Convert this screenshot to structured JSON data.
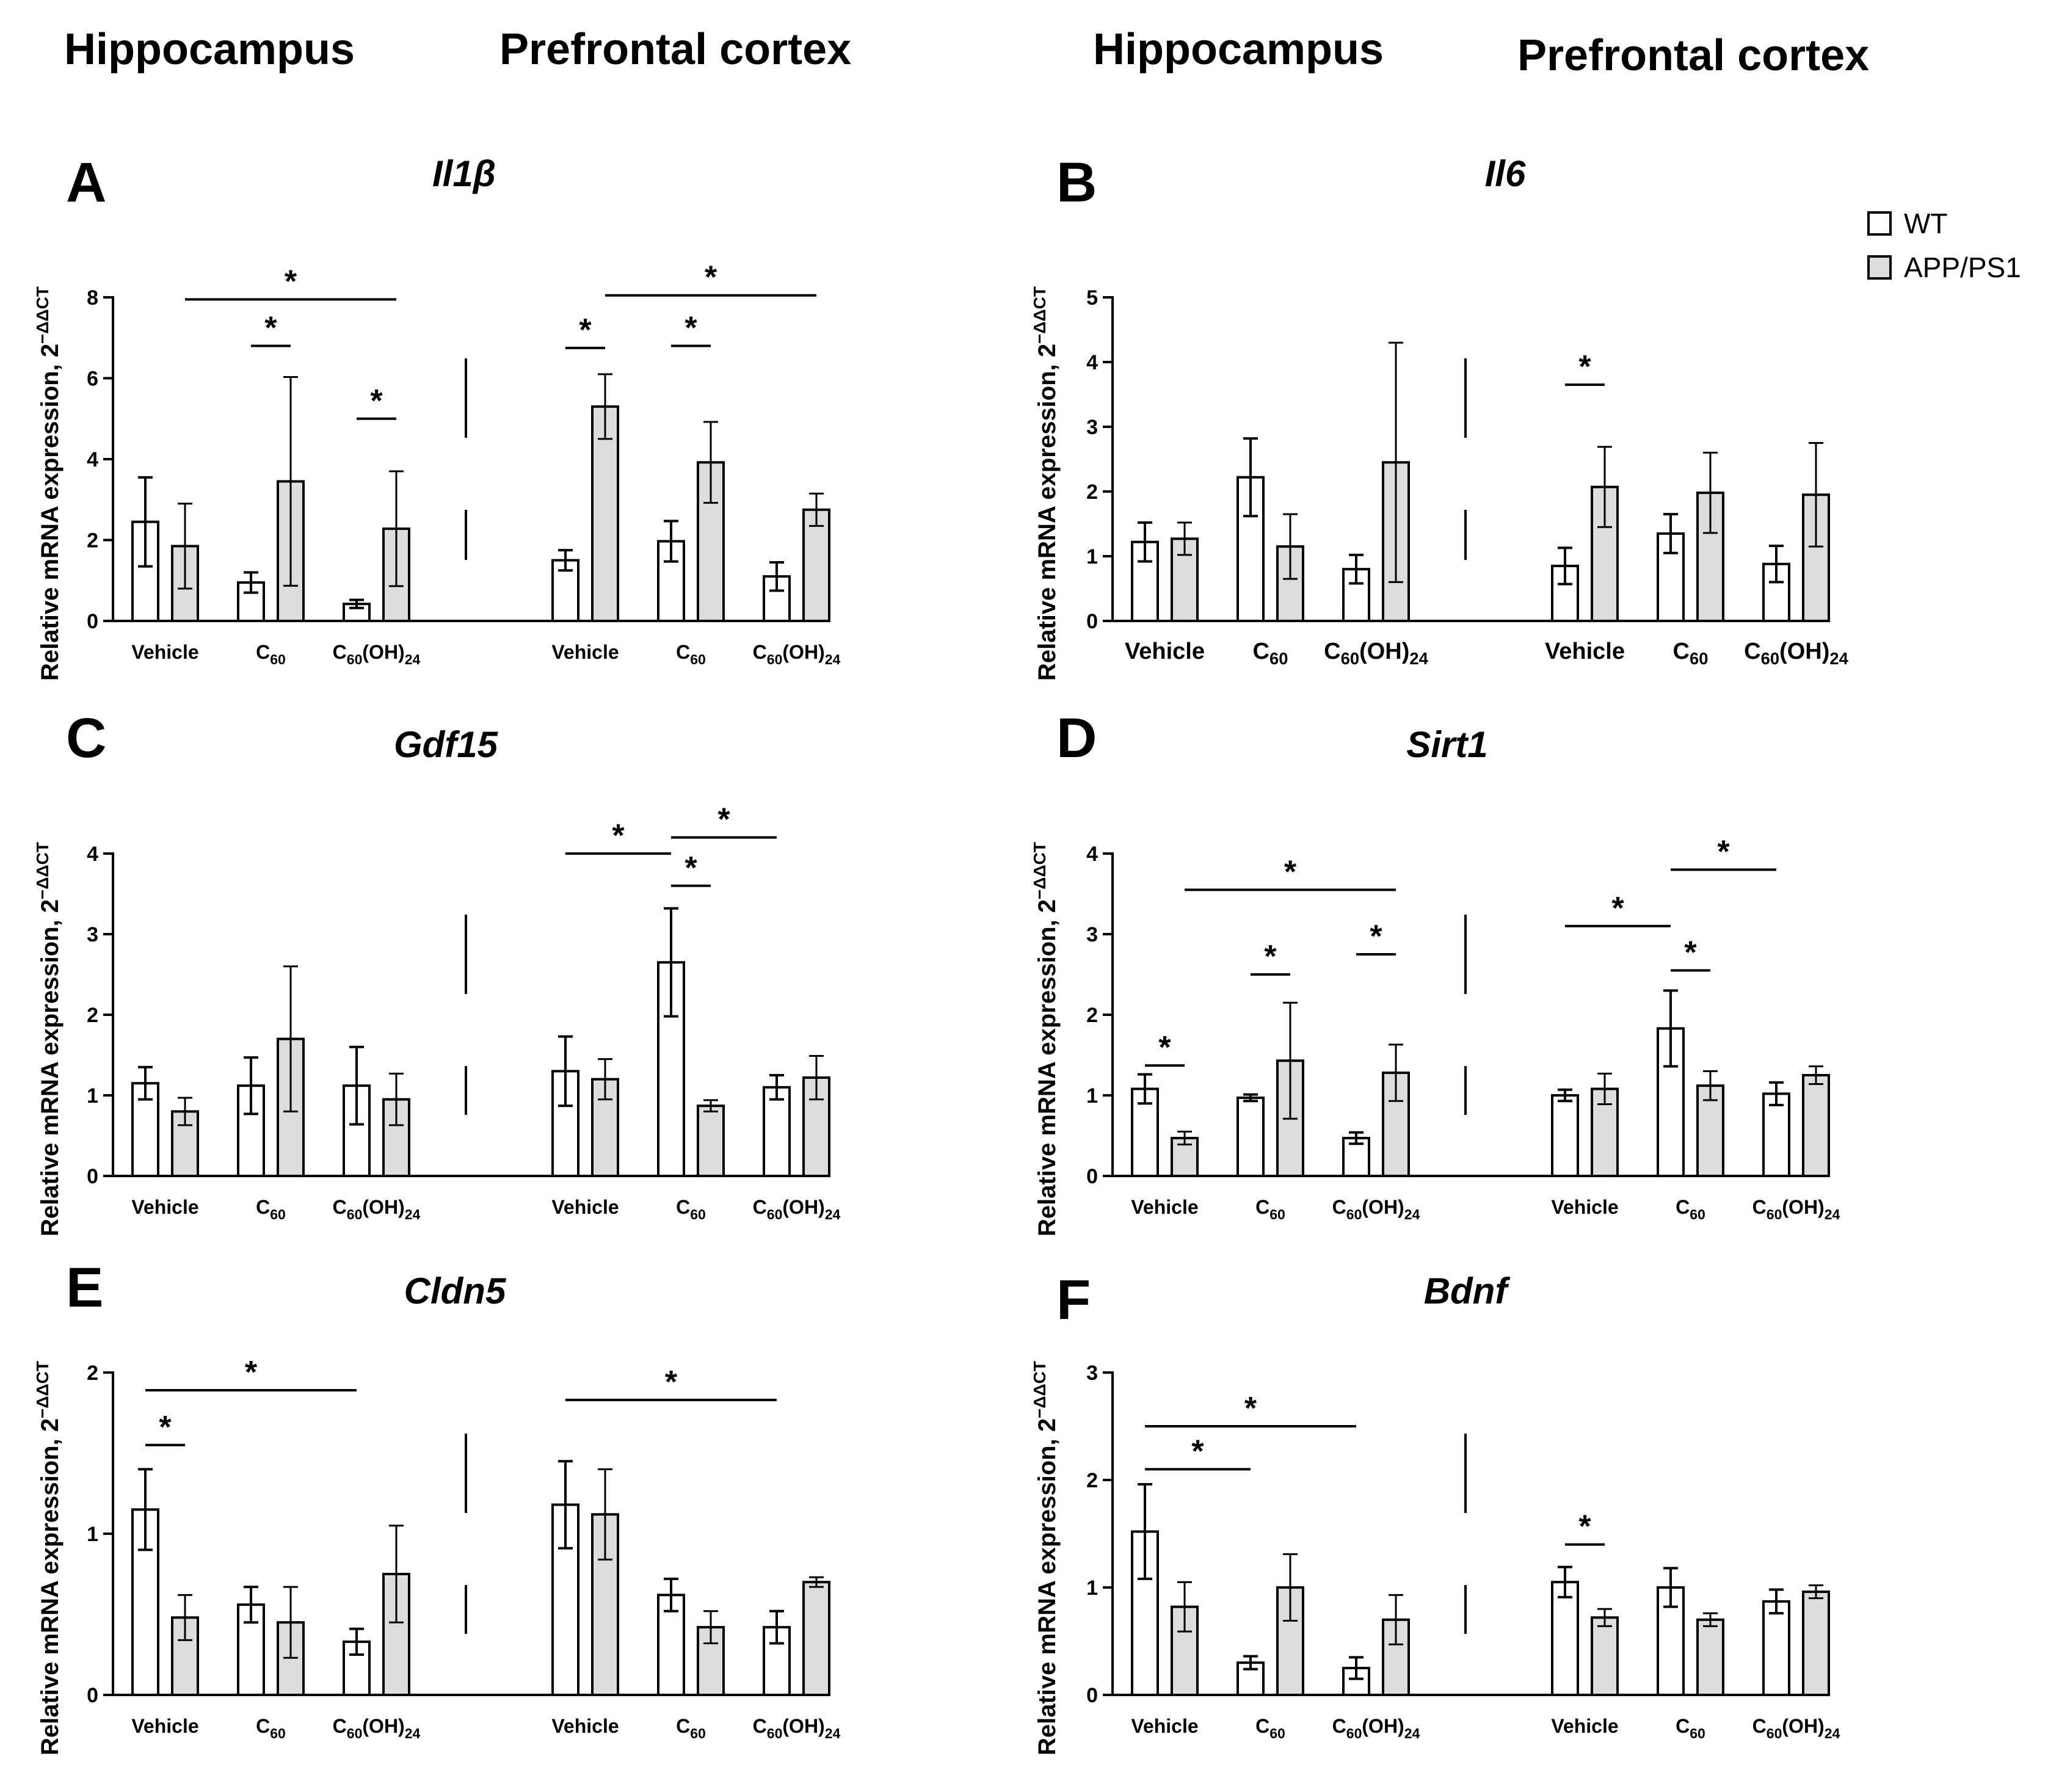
{
  "column_headers": [
    "Hippocampus",
    "Prefrontal cortex",
    "Hippocampus",
    "Prefrontal cortex"
  ],
  "legend": [
    {
      "label": "WT",
      "color": "#ffffff"
    },
    {
      "label": "APP/PS1",
      "color": "#dcdcdc"
    }
  ],
  "y_axis_label": "Relative mRNA expression,",
  "y_axis_label_sup": "2",
  "y_axis_label_exp": "−ΔΔCT",
  "chart_data": [
    {
      "type": "bar",
      "panel": "A",
      "title": "Il1β",
      "ylim": [
        0,
        8
      ],
      "yticks": [
        0,
        2,
        4,
        6,
        8
      ],
      "categories": [
        "Vehicle",
        "C60",
        "C60(OH)24",
        "Vehicle",
        "C60",
        "C60(OH)24"
      ],
      "regions": [
        "Hippocampus",
        "Hippocampus",
        "Hippocampus",
        "Prefrontal cortex",
        "Prefrontal cortex",
        "Prefrontal cortex"
      ],
      "series": [
        {
          "name": "WT",
          "values": [
            2.45,
            0.95,
            0.42,
            1.5,
            1.97,
            1.1
          ],
          "errors": [
            1.1,
            0.25,
            0.1,
            0.25,
            0.5,
            0.35
          ]
        },
        {
          "name": "APP/PS1",
          "values": [
            1.85,
            3.45,
            2.28,
            5.3,
            3.92,
            2.75
          ],
          "errors": [
            1.05,
            2.58,
            1.42,
            0.8,
            1.0,
            0.4
          ]
        }
      ],
      "significance": [
        {
          "from": [
            0,
            "APP/PS1"
          ],
          "to": [
            2,
            "APP/PS1"
          ],
          "y": 7.95,
          "label": "*"
        },
        {
          "from": [
            1,
            "WT"
          ],
          "to": [
            1,
            "APP/PS1"
          ],
          "y": 6.8,
          "label": "*"
        },
        {
          "from": [
            2,
            "WT"
          ],
          "to": [
            2,
            "APP/PS1"
          ],
          "y": 5.0,
          "label": "*"
        },
        {
          "from": [
            3,
            "WT"
          ],
          "to": [
            3,
            "APP/PS1"
          ],
          "y": 6.75,
          "label": "*"
        },
        {
          "from": [
            3,
            "APP/PS1"
          ],
          "to": [
            5,
            "APP/PS1"
          ],
          "y": 8.05,
          "label": "*"
        },
        {
          "from": [
            4,
            "WT"
          ],
          "to": [
            4,
            "APP/PS1"
          ],
          "y": 6.8,
          "label": "*"
        }
      ]
    },
    {
      "type": "bar",
      "panel": "B",
      "title": "Il6",
      "ylim": [
        0,
        5
      ],
      "yticks": [
        0,
        1,
        2,
        3,
        4,
        5
      ],
      "categories": [
        "Vehicle",
        "C60",
        "C60(OH)24",
        "Vehicle",
        "C60",
        "C60(OH)24"
      ],
      "regions": [
        "Hippocampus",
        "Hippocampus",
        "Hippocampus",
        "Prefrontal cortex",
        "Prefrontal cortex",
        "Prefrontal cortex"
      ],
      "series": [
        {
          "name": "WT",
          "values": [
            1.22,
            2.22,
            0.8,
            0.85,
            1.35,
            0.88
          ],
          "errors": [
            0.3,
            0.6,
            0.22,
            0.28,
            0.3,
            0.28
          ]
        },
        {
          "name": "APP/PS1",
          "values": [
            1.27,
            1.15,
            2.45,
            2.07,
            1.98,
            1.95
          ],
          "errors": [
            0.25,
            0.5,
            1.85,
            0.62,
            0.62,
            0.8
          ]
        }
      ],
      "significance": [
        {
          "from": [
            3,
            "WT"
          ],
          "to": [
            3,
            "APP/PS1"
          ],
          "y": 3.65,
          "label": "*"
        }
      ]
    },
    {
      "type": "bar",
      "panel": "C",
      "title": "Gdf15",
      "ylim": [
        0,
        4
      ],
      "yticks": [
        0,
        1,
        2,
        3,
        4
      ],
      "categories": [
        "Vehicle",
        "C60",
        "C60(OH)24",
        "Vehicle",
        "C60",
        "C60(OH)24"
      ],
      "regions": [
        "Hippocampus",
        "Hippocampus",
        "Hippocampus",
        "Prefrontal cortex",
        "Prefrontal cortex",
        "Prefrontal cortex"
      ],
      "series": [
        {
          "name": "WT",
          "values": [
            1.15,
            1.12,
            1.12,
            1.3,
            2.65,
            1.1
          ],
          "errors": [
            0.2,
            0.35,
            0.48,
            0.43,
            0.67,
            0.15
          ]
        },
        {
          "name": "APP/PS1",
          "values": [
            0.8,
            1.7,
            0.95,
            1.2,
            0.87,
            1.22
          ],
          "errors": [
            0.17,
            0.9,
            0.32,
            0.25,
            0.07,
            0.27
          ]
        }
      ],
      "significance": [
        {
          "from": [
            3,
            "WT"
          ],
          "to": [
            4,
            "WT"
          ],
          "y": 4.0,
          "label": "*"
        },
        {
          "from": [
            4,
            "WT"
          ],
          "to": [
            4,
            "APP/PS1"
          ],
          "y": 3.6,
          "label": "*"
        },
        {
          "from": [
            4,
            "WT"
          ],
          "to": [
            5,
            "WT"
          ],
          "y": 4.2,
          "label": "*"
        }
      ]
    },
    {
      "type": "bar",
      "panel": "D",
      "title": "Sirt1",
      "ylim": [
        0,
        4
      ],
      "yticks": [
        0,
        1,
        2,
        3,
        4
      ],
      "categories": [
        "Vehicle",
        "C60",
        "C60(OH)24",
        "Vehicle",
        "C60",
        "C60(OH)24"
      ],
      "regions": [
        "Hippocampus",
        "Hippocampus",
        "Hippocampus",
        "Prefrontal cortex",
        "Prefrontal cortex",
        "Prefrontal cortex"
      ],
      "series": [
        {
          "name": "WT",
          "values": [
            1.08,
            0.97,
            0.47,
            1.0,
            1.83,
            1.02
          ],
          "errors": [
            0.18,
            0.04,
            0.07,
            0.07,
            0.47,
            0.14
          ]
        },
        {
          "name": "APP/PS1",
          "values": [
            0.47,
            1.43,
            1.28,
            1.08,
            1.12,
            1.25
          ],
          "errors": [
            0.08,
            0.72,
            0.35,
            0.19,
            0.18,
            0.11
          ]
        }
      ],
      "significance": [
        {
          "from": [
            0,
            "WT"
          ],
          "to": [
            0,
            "APP/PS1"
          ],
          "y": 1.37,
          "label": "*"
        },
        {
          "from": [
            0,
            "APP/PS1"
          ],
          "to": [
            2,
            "APP/PS1"
          ],
          "y": 3.55,
          "label": "*"
        },
        {
          "from": [
            1,
            "WT"
          ],
          "to": [
            1,
            "APP/PS1"
          ],
          "y": 2.5,
          "label": "*"
        },
        {
          "from": [
            2,
            "WT"
          ],
          "to": [
            2,
            "APP/PS1"
          ],
          "y": 2.75,
          "label": "*"
        },
        {
          "from": [
            3,
            "WT"
          ],
          "to": [
            4,
            "WT"
          ],
          "y": 3.1,
          "label": "*"
        },
        {
          "from": [
            4,
            "WT"
          ],
          "to": [
            4,
            "APP/PS1"
          ],
          "y": 2.55,
          "label": "*"
        },
        {
          "from": [
            4,
            "WT"
          ],
          "to": [
            5,
            "WT"
          ],
          "y": 3.8,
          "label": "*"
        }
      ]
    },
    {
      "type": "bar",
      "panel": "E",
      "title": "Cldn5",
      "ylim": [
        0,
        2
      ],
      "yticks": [
        0,
        1,
        2
      ],
      "categories": [
        "Vehicle",
        "C60",
        "C60(OH)24",
        "Vehicle",
        "C60",
        "C60(OH)24"
      ],
      "regions": [
        "Hippocampus",
        "Hippocampus",
        "Hippocampus",
        "Prefrontal cortex",
        "Prefrontal cortex",
        "Prefrontal cortex"
      ],
      "series": [
        {
          "name": "WT",
          "values": [
            1.15,
            0.56,
            0.33,
            1.18,
            0.62,
            0.42
          ],
          "errors": [
            0.25,
            0.11,
            0.08,
            0.27,
            0.1,
            0.1
          ]
        },
        {
          "name": "APP/PS1",
          "values": [
            0.48,
            0.45,
            0.75,
            1.12,
            0.42,
            0.7
          ],
          "errors": [
            0.14,
            0.22,
            0.3,
            0.28,
            0.1,
            0.03
          ]
        }
      ],
      "significance": [
        {
          "from": [
            0,
            "WT"
          ],
          "to": [
            2,
            "WT"
          ],
          "y": 1.89,
          "label": "*"
        },
        {
          "from": [
            0,
            "WT"
          ],
          "to": [
            0,
            "APP/PS1"
          ],
          "y": 1.55,
          "label": "*"
        },
        {
          "from": [
            3,
            "WT"
          ],
          "to": [
            5,
            "WT"
          ],
          "y": 1.83,
          "label": "*"
        }
      ]
    },
    {
      "type": "bar",
      "panel": "F",
      "title": "Bdnf",
      "ylim": [
        0,
        3
      ],
      "yticks": [
        0,
        1,
        2,
        3
      ],
      "categories": [
        "Vehicle",
        "C60",
        "C60(OH)24",
        "Vehicle",
        "C60",
        "C60(OH)24"
      ],
      "regions": [
        "Hippocampus",
        "Hippocampus",
        "Hippocampus",
        "Prefrontal cortex",
        "Prefrontal cortex",
        "Prefrontal cortex"
      ],
      "series": [
        {
          "name": "WT",
          "values": [
            1.52,
            0.3,
            0.25,
            1.05,
            1.0,
            0.87
          ],
          "errors": [
            0.44,
            0.06,
            0.1,
            0.14,
            0.18,
            0.11
          ]
        },
        {
          "name": "APP/PS1",
          "values": [
            0.82,
            1.0,
            0.7,
            0.72,
            0.7,
            0.96
          ],
          "errors": [
            0.23,
            0.31,
            0.23,
            0.08,
            0.06,
            0.06
          ]
        }
      ],
      "significance": [
        {
          "from": [
            0,
            "WT"
          ],
          "to": [
            2,
            "WT"
          ],
          "y": 2.5,
          "label": "*"
        },
        {
          "from": [
            0,
            "WT"
          ],
          "to": [
            1,
            "WT"
          ],
          "y": 2.1,
          "label": "*"
        },
        {
          "from": [
            3,
            "WT"
          ],
          "to": [
            3,
            "APP/PS1"
          ],
          "y": 1.4,
          "label": "*"
        }
      ]
    }
  ]
}
